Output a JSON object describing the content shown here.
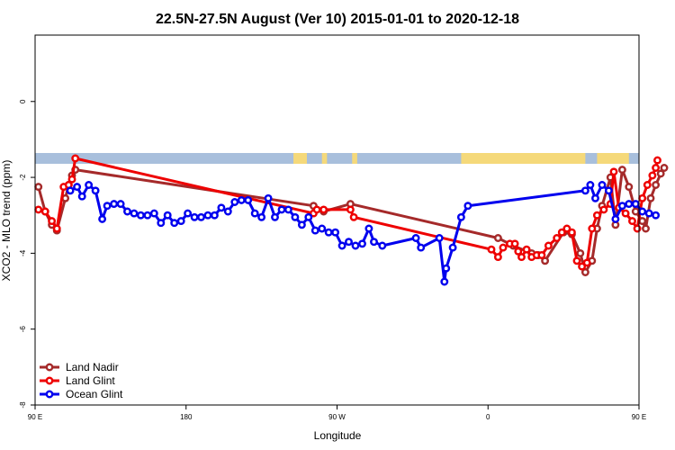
{
  "chart_data": {
    "type": "line",
    "title": "22.5N-27.5N August (Ver 10)   2015-01-01 to 2020-12-18",
    "xlabel": "Longitude",
    "ylabel": "XCO2 - MLO trend (ppm)",
    "xlim": [
      90,
      450
    ],
    "ylim": [
      -8,
      1.75
    ],
    "x_ticks": [
      {
        "value": 90,
        "label": "90 E"
      },
      {
        "value": 180,
        "label": "180"
      },
      {
        "value": 270,
        "label": "90 W"
      },
      {
        "value": 360,
        "label": "0"
      },
      {
        "value": 450,
        "label": "90 E"
      },
      {
        "value": 540,
        "label": "180"
      }
    ],
    "y_ticks": [
      {
        "value": 0,
        "label": "0"
      },
      {
        "value": -2,
        "label": "-2"
      },
      {
        "value": -4,
        "label": "-4"
      },
      {
        "value": -6,
        "label": "-6"
      },
      {
        "value": -8,
        "label": "-8"
      }
    ],
    "x_range_full": [
      90,
      540
    ],
    "land_band": {
      "y": -1.5,
      "ocean_color": "#a8bfdc",
      "land_color": "#f5d97a",
      "land_segments": [
        [
          244,
          252
        ],
        [
          261,
          264
        ],
        [
          279,
          282
        ],
        [
          344,
          418
        ],
        [
          425,
          444
        ],
        [
          469,
          479
        ]
      ]
    },
    "legend_position": "bottom-left",
    "series": [
      {
        "name": "Land Nadir",
        "color": "#a52a2a",
        "points": [
          [
            92,
            -2.25
          ],
          [
            96,
            -2.9
          ],
          [
            100,
            -3.25
          ],
          [
            103,
            -3.4
          ],
          [
            108,
            -2.55
          ],
          [
            110,
            -2.2
          ],
          [
            112,
            -1.95
          ],
          [
            114,
            -1.8
          ],
          [
            256,
            -2.75
          ],
          [
            262,
            -2.9
          ],
          [
            278,
            -2.7
          ],
          [
            366,
            -3.6
          ],
          [
            375,
            -3.8
          ],
          [
            386,
            -4.0
          ],
          [
            390,
            -4.05
          ],
          [
            394,
            -4.2
          ],
          [
            405,
            -3.45
          ],
          [
            410,
            -3.5
          ],
          [
            415,
            -4.0
          ],
          [
            418,
            -4.5
          ],
          [
            422,
            -4.2
          ],
          [
            425,
            -3.35
          ],
          [
            428,
            -2.75
          ],
          [
            433,
            -2.0
          ],
          [
            436,
            -3.25
          ],
          [
            440,
            -1.8
          ],
          [
            444,
            -2.25
          ],
          [
            448,
            -2.9
          ],
          [
            452,
            -3.15
          ],
          [
            454,
            -3.35
          ],
          [
            457,
            -2.55
          ],
          [
            460,
            -2.2
          ],
          [
            463,
            -1.9
          ],
          [
            465,
            -1.75
          ]
        ]
      },
      {
        "name": "Land Glint",
        "color": "#ee0000",
        "points": [
          [
            92,
            -2.85
          ],
          [
            96,
            -2.9
          ],
          [
            100,
            -3.15
          ],
          [
            103,
            -3.35
          ],
          [
            107,
            -2.25
          ],
          [
            110,
            -2.2
          ],
          [
            112,
            -2.05
          ],
          [
            114,
            -1.5
          ],
          [
            256,
            -2.95
          ],
          [
            258,
            -2.85
          ],
          [
            262,
            -2.85
          ],
          [
            278,
            -2.85
          ],
          [
            280,
            -3.05
          ],
          [
            362,
            -3.9
          ],
          [
            366,
            -4.1
          ],
          [
            369,
            -3.85
          ],
          [
            373,
            -3.75
          ],
          [
            376,
            -3.75
          ],
          [
            378,
            -3.95
          ],
          [
            380,
            -4.1
          ],
          [
            383,
            -3.9
          ],
          [
            386,
            -4.1
          ],
          [
            389,
            -4.05
          ],
          [
            392,
            -4.05
          ],
          [
            396,
            -3.8
          ],
          [
            401,
            -3.6
          ],
          [
            404,
            -3.45
          ],
          [
            407,
            -3.35
          ],
          [
            410,
            -3.45
          ],
          [
            413,
            -4.2
          ],
          [
            416,
            -4.35
          ],
          [
            419,
            -4.25
          ],
          [
            422,
            -3.35
          ],
          [
            425,
            -3.0
          ],
          [
            429,
            -2.85
          ],
          [
            433,
            -2.7
          ],
          [
            435,
            -1.85
          ],
          [
            438,
            -2.8
          ],
          [
            442,
            -2.95
          ],
          [
            446,
            -3.15
          ],
          [
            449,
            -3.35
          ],
          [
            452,
            -2.55
          ],
          [
            455,
            -2.2
          ],
          [
            458,
            -1.95
          ],
          [
            460,
            -1.75
          ],
          [
            461,
            -1.55
          ]
        ]
      },
      {
        "name": "Ocean Glint",
        "color": "#0000ee",
        "points": [
          [
            111,
            -2.35
          ],
          [
            115,
            -2.25
          ],
          [
            118,
            -2.5
          ],
          [
            122,
            -2.2
          ],
          [
            126,
            -2.35
          ],
          [
            130,
            -3.1
          ],
          [
            133,
            -2.75
          ],
          [
            137,
            -2.7
          ],
          [
            141,
            -2.7
          ],
          [
            145,
            -2.9
          ],
          [
            149,
            -2.95
          ],
          [
            153,
            -3.0
          ],
          [
            157,
            -3.0
          ],
          [
            161,
            -2.95
          ],
          [
            165,
            -3.2
          ],
          [
            169,
            -3.0
          ],
          [
            173,
            -3.2
          ],
          [
            177,
            -3.15
          ],
          [
            181,
            -2.95
          ],
          [
            185,
            -3.05
          ],
          [
            189,
            -3.05
          ],
          [
            193,
            -3.0
          ],
          [
            197,
            -3.0
          ],
          [
            201,
            -2.8
          ],
          [
            205,
            -2.9
          ],
          [
            209,
            -2.65
          ],
          [
            213,
            -2.6
          ],
          [
            217,
            -2.6
          ],
          [
            221,
            -2.95
          ],
          [
            225,
            -3.05
          ],
          [
            229,
            -2.55
          ],
          [
            233,
            -3.05
          ],
          [
            237,
            -2.85
          ],
          [
            241,
            -2.85
          ],
          [
            245,
            -3.05
          ],
          [
            249,
            -3.25
          ],
          [
            253,
            -3.05
          ],
          [
            257,
            -3.4
          ],
          [
            261,
            -3.35
          ],
          [
            265,
            -3.45
          ],
          [
            269,
            -3.45
          ],
          [
            273,
            -3.8
          ],
          [
            277,
            -3.7
          ],
          [
            281,
            -3.8
          ],
          [
            285,
            -3.75
          ],
          [
            289,
            -3.35
          ],
          [
            292,
            -3.7
          ],
          [
            297,
            -3.8
          ],
          [
            317,
            -3.6
          ],
          [
            320,
            -3.85
          ],
          [
            331,
            -3.6
          ],
          [
            334,
            -4.75
          ],
          [
            335,
            -4.4
          ],
          [
            339,
            -3.85
          ],
          [
            344,
            -3.05
          ],
          [
            348,
            -2.75
          ],
          [
            418,
            -2.35
          ],
          [
            421,
            -2.2
          ],
          [
            424,
            -2.55
          ],
          [
            428,
            -2.2
          ],
          [
            432,
            -2.35
          ],
          [
            436,
            -3.1
          ],
          [
            440,
            -2.75
          ],
          [
            444,
            -2.7
          ],
          [
            448,
            -2.7
          ],
          [
            452,
            -2.9
          ],
          [
            456,
            -2.95
          ],
          [
            460,
            -3.0
          ]
        ]
      }
    ]
  }
}
